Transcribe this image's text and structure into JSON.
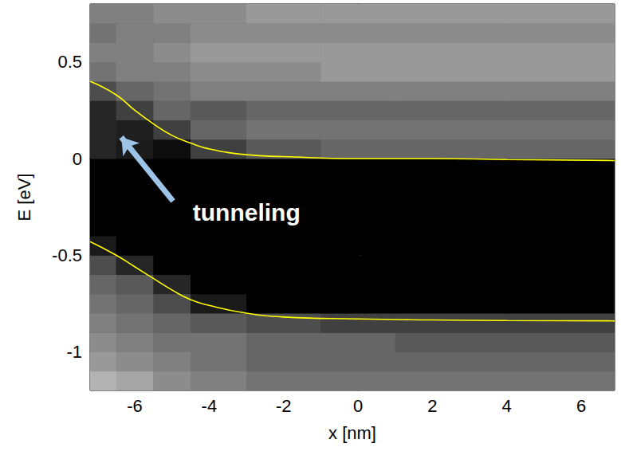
{
  "chart_data": {
    "type": "heatmap",
    "x_label": "x [nm]",
    "y_label": "E [eV]",
    "xlim": [
      -7.2,
      6.9
    ],
    "ylim": [
      -1.2,
      0.8
    ],
    "xticks": [
      -6,
      -4,
      -2,
      0,
      2,
      4,
      6
    ],
    "yticks": [
      -1,
      -0.5,
      0,
      0.5
    ],
    "grid": false,
    "heatmap": {
      "x_edges": [
        -7.2,
        -6.5,
        -5.5,
        -4.5,
        -3,
        -1,
        1,
        4,
        6.9
      ],
      "y_edges": [
        -1.2,
        -1.1,
        -1.0,
        -0.9,
        -0.8,
        -0.7,
        -0.6,
        -0.5,
        -0.4,
        -0.3,
        -0.2,
        -0.1,
        0,
        0.1,
        0.2,
        0.3,
        0.4,
        0.5,
        0.6,
        0.7,
        0.8
      ],
      "cells": [
        [
          0.7,
          0.65,
          0.55,
          0.5,
          0.45,
          0.45,
          0.45,
          0.45
        ],
        [
          0.6,
          0.55,
          0.5,
          0.45,
          0.4,
          0.4,
          0.4,
          0.4
        ],
        [
          0.55,
          0.5,
          0.45,
          0.45,
          0.4,
          0.4,
          0.35,
          0.35
        ],
        [
          0.5,
          0.45,
          0.4,
          0.35,
          0.3,
          0.25,
          0.25,
          0.25
        ],
        [
          0.45,
          0.4,
          0.3,
          0.1,
          0,
          0,
          0,
          0
        ],
        [
          0.4,
          0.35,
          0.15,
          0,
          0,
          0,
          0,
          0
        ],
        [
          0.3,
          0.15,
          0,
          0,
          0,
          0,
          0,
          0
        ],
        [
          0.1,
          0,
          0,
          0,
          0,
          0,
          0,
          0
        ],
        [
          0,
          0,
          0,
          0,
          0,
          0,
          0,
          0
        ],
        [
          0,
          0,
          0,
          0,
          0,
          0,
          0,
          0
        ],
        [
          0,
          0,
          0,
          0,
          0,
          0,
          0,
          0
        ],
        [
          0,
          0,
          0,
          0,
          0,
          0,
          0,
          0
        ],
        [
          0.15,
          0.1,
          0.05,
          0.25,
          0.35,
          0.4,
          0.4,
          0.4
        ],
        [
          0.15,
          0.12,
          0.25,
          0.4,
          0.45,
          0.45,
          0.45,
          0.45
        ],
        [
          0.15,
          0.25,
          0.4,
          0.35,
          0.4,
          0.4,
          0.4,
          0.4
        ],
        [
          0.3,
          0.4,
          0.45,
          0.5,
          0.5,
          0.5,
          0.5,
          0.5
        ],
        [
          0.45,
          0.5,
          0.5,
          0.55,
          0.55,
          0.6,
          0.6,
          0.6
        ],
        [
          0.5,
          0.5,
          0.55,
          0.6,
          0.6,
          0.6,
          0.6,
          0.6
        ],
        [
          0.45,
          0.5,
          0.5,
          0.55,
          0.55,
          0.55,
          0.55,
          0.55
        ],
        [
          0.5,
          0.5,
          0.55,
          0.55,
          0.6,
          0.6,
          0.6,
          0.6
        ]
      ]
    },
    "series": [
      {
        "type": "line",
        "color": "#ffff00",
        "x": [
          -7.2,
          -6.5,
          -6,
          -5.5,
          -5,
          -4.5,
          -4,
          -3,
          -2,
          0,
          2,
          4,
          6.9
        ],
        "values": [
          0.4,
          0.33,
          0.25,
          0.18,
          0.12,
          0.08,
          0.05,
          0.02,
          0.01,
          0.0,
          0.0,
          -0.005,
          -0.01
        ]
      },
      {
        "type": "line",
        "color": "#ffff00",
        "x": [
          -7.2,
          -6.5,
          -6,
          -5.5,
          -5,
          -4.5,
          -4,
          -3,
          -2,
          0,
          2,
          4,
          6.9
        ],
        "values": [
          -0.43,
          -0.5,
          -0.56,
          -0.62,
          -0.68,
          -0.73,
          -0.76,
          -0.8,
          -0.82,
          -0.83,
          -0.835,
          -0.838,
          -0.84
        ]
      }
    ],
    "annotations": [
      {
        "text": "tunneling",
        "x": -4.44,
        "y": -0.28,
        "arrow_from": [
          -4.97,
          -0.22
        ],
        "arrow_to": [
          -6.36,
          0.11
        ],
        "color": "#9dc3e6"
      }
    ]
  }
}
